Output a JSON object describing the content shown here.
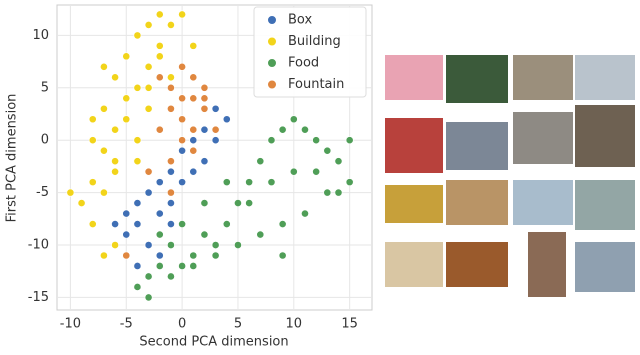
{
  "chart_data": {
    "type": "scatter",
    "x_label": "Second PCA dimension",
    "y_label": "First PCA dimension",
    "xlim": [
      -11.2,
      17
    ],
    "ylim": [
      -16.2,
      12.9
    ],
    "xticks": [
      -10,
      -5,
      0,
      5,
      10,
      15
    ],
    "yticks": [
      -15,
      -10,
      -5,
      0,
      5,
      10
    ],
    "grid": true,
    "legend": "upper right",
    "series": [
      {
        "name": "Box",
        "color": "#3f6fb5",
        "x": [
          -4,
          -3,
          -2,
          -1,
          0,
          1,
          2,
          3,
          4,
          -5,
          -4,
          -3,
          -2,
          -1,
          0,
          1,
          -5,
          -4,
          -2,
          -6,
          -3,
          -1,
          2,
          3
        ],
        "y": [
          -6,
          -5,
          -4,
          -3,
          -1,
          0,
          1,
          3,
          2,
          -9,
          -8,
          -10,
          -7,
          -6,
          -4,
          -3,
          -7,
          -12,
          -11,
          -8,
          -13,
          -8,
          -2,
          0
        ]
      },
      {
        "name": "Building",
        "color": "#f2d41a",
        "x": [
          -8,
          -7,
          -6,
          -5,
          -4,
          -3,
          -2,
          -1,
          0,
          1,
          -6,
          -5,
          -4,
          -3,
          -2,
          -1,
          -8,
          -7,
          -6,
          -5,
          -3,
          -9,
          -8,
          -7,
          -4,
          -6,
          -10,
          -7,
          -5,
          -8,
          -3,
          -2,
          -6,
          -4,
          -7
        ],
        "y": [
          0,
          3,
          6,
          8,
          10,
          11,
          12,
          11,
          12,
          9,
          -2,
          2,
          5,
          7,
          9,
          6,
          -4,
          -1,
          1,
          4,
          3,
          -6,
          -8,
          -5,
          0,
          -10,
          -5,
          -11,
          -7,
          2,
          5,
          8,
          -3,
          -2,
          7
        ]
      },
      {
        "name": "Food",
        "color": "#4f9e57",
        "x": [
          -4,
          -3,
          -2,
          -1,
          0,
          1,
          2,
          3,
          4,
          5,
          6,
          7,
          8,
          9,
          10,
          11,
          12,
          13,
          14,
          15,
          15,
          13,
          11,
          9,
          7,
          5,
          3,
          1,
          -1,
          -3,
          6,
          8,
          10,
          12,
          4,
          2,
          0,
          -2,
          14,
          9
        ],
        "y": [
          -14,
          -13,
          -12,
          -10,
          -12,
          -11,
          -9,
          -10,
          -8,
          -6,
          -4,
          -2,
          0,
          1,
          2,
          1,
          0,
          -1,
          -2,
          0,
          -4,
          -5,
          -7,
          -8,
          -9,
          -10,
          -11,
          -12,
          -13,
          -15,
          -6,
          -4,
          -3,
          -3,
          -4,
          -6,
          -8,
          -9,
          -5,
          -11
        ]
      },
      {
        "name": "Fountain",
        "color": "#e0873f",
        "x": [
          -2,
          -1,
          0,
          1,
          2,
          -1,
          0,
          1,
          2,
          3,
          -2,
          0,
          1,
          -3,
          -4,
          -5,
          -1,
          2,
          0,
          3,
          -1,
          1
        ],
        "y": [
          6,
          5,
          7,
          6,
          4,
          3,
          2,
          4,
          3,
          1,
          1,
          0,
          -1,
          -3,
          -8,
          -11,
          -5,
          5,
          4,
          3,
          -2,
          1
        ]
      }
    ]
  }
}
